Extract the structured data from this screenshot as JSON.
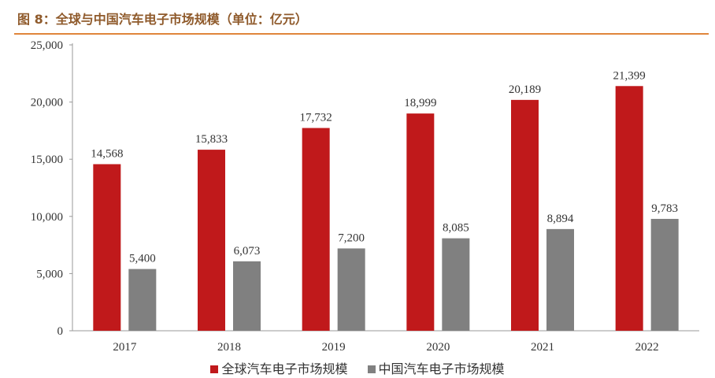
{
  "header": {
    "title": "图 8：全球与中国汽车电子市场规模（单位：亿元）"
  },
  "chart_data": {
    "type": "bar",
    "categories": [
      "2017",
      "2018",
      "2019",
      "2020",
      "2021",
      "2022"
    ],
    "series": [
      {
        "name": "全球汽车电子市场规模",
        "color": "#c0191b",
        "values": [
          14568,
          15833,
          17732,
          18999,
          20189,
          21399
        ],
        "labels": [
          "14,568",
          "15,833",
          "17,732",
          "18,999",
          "20,189",
          "21,399"
        ]
      },
      {
        "name": "中国汽车电子市场规模",
        "color": "#808080",
        "values": [
          5400,
          6073,
          7200,
          8085,
          8894,
          9783
        ],
        "labels": [
          "5,400",
          "6,073",
          "7,200",
          "8,085",
          "8,894",
          "9,783"
        ]
      }
    ],
    "ylim": [
      0,
      25000
    ],
    "yticks": [
      0,
      5000,
      10000,
      15000,
      20000,
      25000
    ],
    "ytick_labels": [
      "0",
      "5,000",
      "10,000",
      "15,000",
      "20,000",
      "25,000"
    ],
    "grid": false,
    "legend_position": "bottom",
    "title": "图 8：全球与中国汽车电子市场规模（单位：亿元）",
    "xlabel": "",
    "ylabel": ""
  }
}
